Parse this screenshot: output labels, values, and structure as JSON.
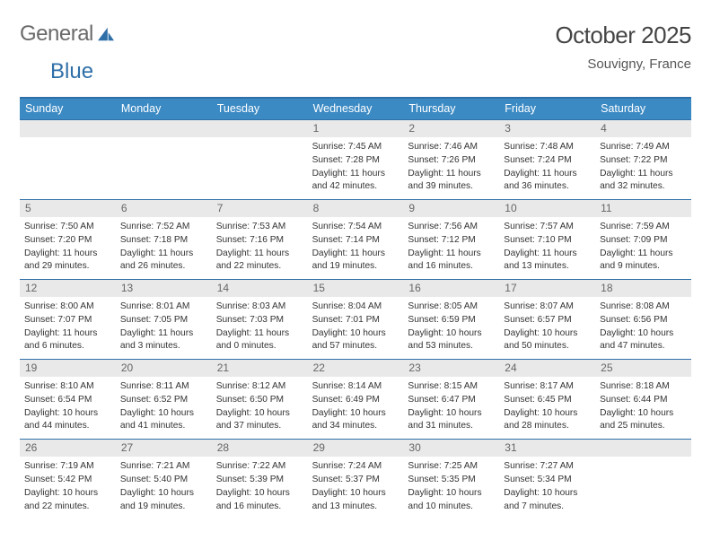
{
  "brand": {
    "word1": "General",
    "word2": "Blue"
  },
  "title": "October 2025",
  "location": "Souvigny, France",
  "colors": {
    "header_bg": "#3b8ac4",
    "border": "#2f6fa8",
    "daynum_bg": "#e9e9e9",
    "text": "#333333",
    "muted": "#666666"
  },
  "day_names": [
    "Sunday",
    "Monday",
    "Tuesday",
    "Wednesday",
    "Thursday",
    "Friday",
    "Saturday"
  ],
  "weeks": [
    [
      {
        "n": "",
        "empty": true
      },
      {
        "n": "",
        "empty": true
      },
      {
        "n": "",
        "empty": true
      },
      {
        "n": "1",
        "sunrise": "7:45 AM",
        "sunset": "7:28 PM",
        "dayh": "11",
        "daym": "42"
      },
      {
        "n": "2",
        "sunrise": "7:46 AM",
        "sunset": "7:26 PM",
        "dayh": "11",
        "daym": "39"
      },
      {
        "n": "3",
        "sunrise": "7:48 AM",
        "sunset": "7:24 PM",
        "dayh": "11",
        "daym": "36"
      },
      {
        "n": "4",
        "sunrise": "7:49 AM",
        "sunset": "7:22 PM",
        "dayh": "11",
        "daym": "32"
      }
    ],
    [
      {
        "n": "5",
        "sunrise": "7:50 AM",
        "sunset": "7:20 PM",
        "dayh": "11",
        "daym": "29"
      },
      {
        "n": "6",
        "sunrise": "7:52 AM",
        "sunset": "7:18 PM",
        "dayh": "11",
        "daym": "26"
      },
      {
        "n": "7",
        "sunrise": "7:53 AM",
        "sunset": "7:16 PM",
        "dayh": "11",
        "daym": "22"
      },
      {
        "n": "8",
        "sunrise": "7:54 AM",
        "sunset": "7:14 PM",
        "dayh": "11",
        "daym": "19"
      },
      {
        "n": "9",
        "sunrise": "7:56 AM",
        "sunset": "7:12 PM",
        "dayh": "11",
        "daym": "16"
      },
      {
        "n": "10",
        "sunrise": "7:57 AM",
        "sunset": "7:10 PM",
        "dayh": "11",
        "daym": "13"
      },
      {
        "n": "11",
        "sunrise": "7:59 AM",
        "sunset": "7:09 PM",
        "dayh": "11",
        "daym": "9"
      }
    ],
    [
      {
        "n": "12",
        "sunrise": "8:00 AM",
        "sunset": "7:07 PM",
        "dayh": "11",
        "daym": "6"
      },
      {
        "n": "13",
        "sunrise": "8:01 AM",
        "sunset": "7:05 PM",
        "dayh": "11",
        "daym": "3"
      },
      {
        "n": "14",
        "sunrise": "8:03 AM",
        "sunset": "7:03 PM",
        "dayh": "11",
        "daym": "0"
      },
      {
        "n": "15",
        "sunrise": "8:04 AM",
        "sunset": "7:01 PM",
        "dayh": "10",
        "daym": "57"
      },
      {
        "n": "16",
        "sunrise": "8:05 AM",
        "sunset": "6:59 PM",
        "dayh": "10",
        "daym": "53"
      },
      {
        "n": "17",
        "sunrise": "8:07 AM",
        "sunset": "6:57 PM",
        "dayh": "10",
        "daym": "50"
      },
      {
        "n": "18",
        "sunrise": "8:08 AM",
        "sunset": "6:56 PM",
        "dayh": "10",
        "daym": "47"
      }
    ],
    [
      {
        "n": "19",
        "sunrise": "8:10 AM",
        "sunset": "6:54 PM",
        "dayh": "10",
        "daym": "44"
      },
      {
        "n": "20",
        "sunrise": "8:11 AM",
        "sunset": "6:52 PM",
        "dayh": "10",
        "daym": "41"
      },
      {
        "n": "21",
        "sunrise": "8:12 AM",
        "sunset": "6:50 PM",
        "dayh": "10",
        "daym": "37"
      },
      {
        "n": "22",
        "sunrise": "8:14 AM",
        "sunset": "6:49 PM",
        "dayh": "10",
        "daym": "34"
      },
      {
        "n": "23",
        "sunrise": "8:15 AM",
        "sunset": "6:47 PM",
        "dayh": "10",
        "daym": "31"
      },
      {
        "n": "24",
        "sunrise": "8:17 AM",
        "sunset": "6:45 PM",
        "dayh": "10",
        "daym": "28"
      },
      {
        "n": "25",
        "sunrise": "8:18 AM",
        "sunset": "6:44 PM",
        "dayh": "10",
        "daym": "25"
      }
    ],
    [
      {
        "n": "26",
        "sunrise": "7:19 AM",
        "sunset": "5:42 PM",
        "dayh": "10",
        "daym": "22"
      },
      {
        "n": "27",
        "sunrise": "7:21 AM",
        "sunset": "5:40 PM",
        "dayh": "10",
        "daym": "19"
      },
      {
        "n": "28",
        "sunrise": "7:22 AM",
        "sunset": "5:39 PM",
        "dayh": "10",
        "daym": "16"
      },
      {
        "n": "29",
        "sunrise": "7:24 AM",
        "sunset": "5:37 PM",
        "dayh": "10",
        "daym": "13"
      },
      {
        "n": "30",
        "sunrise": "7:25 AM",
        "sunset": "5:35 PM",
        "dayh": "10",
        "daym": "10"
      },
      {
        "n": "31",
        "sunrise": "7:27 AM",
        "sunset": "5:34 PM",
        "dayh": "10",
        "daym": "7"
      },
      {
        "n": "",
        "empty": true
      }
    ]
  ],
  "labels": {
    "sunrise_prefix": "Sunrise: ",
    "sunset_prefix": "Sunset: ",
    "daylight_prefix": "Daylight: ",
    "hours_word": " hours",
    "and_word": "and ",
    "minutes_suffix": " minutes."
  }
}
